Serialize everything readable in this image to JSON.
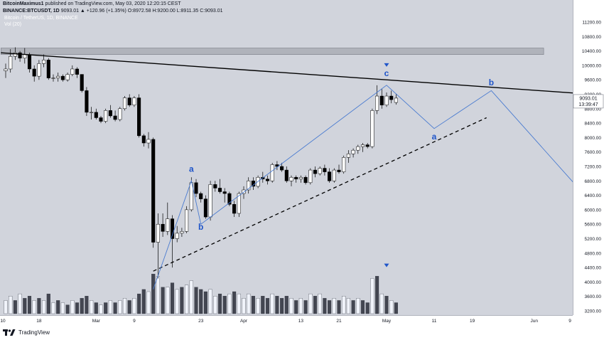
{
  "header": {
    "author": "BitcoinMaximus1",
    "published": "published on TradingView.com, May 03, 2020 12:20:15 CEST",
    "symbol": "BINANCE:BTCUSDT, 1D",
    "ohlc": "9093.01 ▲ +120.96 (+1.35%) O:8972.58 H:9200.00 L:8911.35 C:9093.01",
    "series_title": "Bitcoin / TetherUS, 1D, BINANCE",
    "volume_label": "Vol (20)"
  },
  "footer": {
    "brand": "TradingView"
  },
  "price_labels": {
    "last": "9093.01",
    "countdown": "13:39:47"
  },
  "colors": {
    "bg": "#d1d4dc",
    "up": "#ffffff",
    "down": "#000000",
    "wave": "#4a7bd0",
    "label": "#1f55c9"
  },
  "chart_data": {
    "type": "candlestick",
    "title": "Bitcoin / TetherUS, 1D, BINANCE",
    "ylim": [
      3200,
      11200
    ],
    "y_ticks": [
      11200,
      10800,
      10400,
      10000,
      9600,
      9200,
      8800,
      8400,
      8000,
      7600,
      7200,
      6800,
      6400,
      6000,
      5600,
      5200,
      4800,
      4400,
      4000,
      3600,
      3200
    ],
    "x_ticks": [
      {
        "label": "10",
        "x": -1
      },
      {
        "label": "18",
        "x": 7
      },
      {
        "label": "Mar",
        "x": 19
      },
      {
        "label": "9",
        "x": 27
      },
      {
        "label": "23",
        "x": 41
      },
      {
        "label": "Apr",
        "x": 50
      },
      {
        "label": "13",
        "x": 62
      },
      {
        "label": "21",
        "x": 70
      },
      {
        "label": "May",
        "x": 80
      },
      {
        "label": "11",
        "x": 90
      },
      {
        "label": "19",
        "x": 98
      },
      {
        "label": "Jun",
        "x": 111
      },
      {
        "label": "9",
        "x": 119
      }
    ],
    "candles": [
      [
        0,
        9850,
        10050,
        9650,
        9900
      ],
      [
        1,
        9900,
        10450,
        9800,
        10250
      ],
      [
        2,
        10250,
        10500,
        10150,
        10350
      ],
      [
        3,
        10350,
        10400,
        10100,
        10200
      ],
      [
        4,
        10200,
        10480,
        10050,
        10300
      ],
      [
        5,
        10300,
        10350,
        9800,
        9900
      ],
      [
        6,
        9900,
        10000,
        9550,
        9700
      ],
      [
        7,
        9700,
        10150,
        9600,
        10050
      ],
      [
        8,
        10050,
        10300,
        9950,
        10150
      ],
      [
        9,
        10150,
        10200,
        9600,
        9650
      ],
      [
        10,
        9650,
        9750,
        9550,
        9650
      ],
      [
        11,
        9650,
        9800,
        9550,
        9700
      ],
      [
        12,
        9700,
        9750,
        9550,
        9600
      ],
      [
        13,
        9600,
        9800,
        9550,
        9750
      ],
      [
        14,
        9750,
        10000,
        9700,
        9900
      ],
      [
        15,
        9900,
        9950,
        9650,
        9750
      ],
      [
        16,
        9750,
        9750,
        9250,
        9300
      ],
      [
        17,
        9300,
        9400,
        8600,
        8700
      ],
      [
        18,
        8700,
        8850,
        8500,
        8700
      ],
      [
        19,
        8700,
        8800,
        8500,
        8550
      ],
      [
        20,
        8550,
        8600,
        8400,
        8450
      ],
      [
        21,
        8450,
        8800,
        8400,
        8750
      ],
      [
        22,
        8750,
        8900,
        8550,
        8600
      ],
      [
        23,
        8600,
        8750,
        8450,
        8500
      ],
      [
        24,
        8500,
        8850,
        8450,
        8800
      ],
      [
        25,
        8800,
        9150,
        8750,
        9100
      ],
      [
        26,
        9100,
        9200,
        8850,
        8900
      ],
      [
        27,
        8900,
        9150,
        8850,
        9100
      ],
      [
        28,
        9100,
        9200,
        8000,
        8050
      ],
      [
        29,
        8050,
        8100,
        7750,
        7850
      ],
      [
        30,
        7850,
        8150,
        7700,
        7950
      ],
      [
        31,
        7950,
        8000,
        4950,
        5100
      ],
      [
        32,
        5100,
        5900,
        4100,
        5600
      ],
      [
        33,
        5600,
        5900,
        5250,
        5400
      ],
      [
        34,
        5400,
        6200,
        5300,
        5750
      ],
      [
        35,
        5750,
        5850,
        4400,
        5200
      ],
      [
        36,
        5200,
        5550,
        5100,
        5350
      ],
      [
        37,
        5350,
        5500,
        5250,
        5400
      ],
      [
        38,
        5400,
        6100,
        5350,
        6000
      ],
      [
        39,
        6000,
        6900,
        5950,
        6750
      ],
      [
        40,
        6750,
        6850,
        6350,
        6450
      ],
      [
        41,
        6450,
        6500,
        6200,
        6300
      ],
      [
        42,
        6300,
        6400,
        5750,
        5800
      ],
      [
        43,
        5800,
        6800,
        5700,
        6700
      ],
      [
        44,
        6700,
        6800,
        6500,
        6600
      ],
      [
        45,
        6600,
        6850,
        6450,
        6500
      ],
      [
        46,
        6500,
        6600,
        6200,
        6450
      ],
      [
        47,
        6450,
        6500,
        6100,
        6150
      ],
      [
        48,
        6150,
        6250,
        5800,
        5900
      ],
      [
        49,
        5900,
        6500,
        5800,
        6450
      ],
      [
        50,
        6450,
        6650,
        6300,
        6550
      ],
      [
        51,
        6550,
        6900,
        6450,
        6800
      ],
      [
        52,
        6800,
        6900,
        6550,
        6650
      ],
      [
        53,
        6650,
        6950,
        6600,
        6900
      ],
      [
        54,
        6900,
        7050,
        6750,
        6850
      ],
      [
        55,
        6850,
        6950,
        6700,
        6800
      ],
      [
        56,
        6800,
        7300,
        6750,
        7250
      ],
      [
        57,
        7250,
        7350,
        7100,
        7200
      ],
      [
        58,
        7200,
        7300,
        7050,
        7100
      ],
      [
        59,
        7100,
        7200,
        6750,
        6800
      ],
      [
        60,
        6800,
        6950,
        6650,
        6900
      ],
      [
        61,
        6900,
        6950,
        6750,
        6850
      ],
      [
        62,
        6850,
        6950,
        6750,
        6900
      ],
      [
        63,
        6900,
        6950,
        6700,
        6750
      ],
      [
        64,
        6750,
        7150,
        6700,
        7100
      ],
      [
        65,
        7100,
        7200,
        6900,
        7000
      ],
      [
        66,
        7000,
        7200,
        6950,
        7150
      ],
      [
        67,
        7150,
        7250,
        6950,
        7050
      ],
      [
        68,
        7050,
        7150,
        6750,
        6800
      ],
      [
        69,
        6800,
        7150,
        6750,
        7100
      ],
      [
        70,
        7100,
        7250,
        7000,
        7050
      ],
      [
        71,
        7050,
        7500,
        7000,
        7450
      ],
      [
        72,
        7450,
        7650,
        7300,
        7550
      ],
      [
        73,
        7550,
        7700,
        7450,
        7650
      ],
      [
        74,
        7650,
        7800,
        7550,
        7750
      ],
      [
        75,
        7750,
        7850,
        7600,
        7800
      ],
      [
        76,
        7800,
        7850,
        7700,
        7750
      ],
      [
        77,
        7750,
        8800,
        7700,
        8750
      ],
      [
        78,
        8750,
        9450,
        8650,
        9150
      ],
      [
        79,
        9150,
        9350,
        8800,
        8900
      ],
      [
        80,
        8900,
        9250,
        8850,
        9150
      ],
      [
        81,
        9150,
        9300,
        8950,
        9050
      ],
      [
        82,
        8972.58,
        9200,
        8911.35,
        9093.01
      ]
    ],
    "volume": [
      [
        0,
        0.3,
        1
      ],
      [
        1,
        0.4,
        1
      ],
      [
        2,
        0.3,
        0
      ],
      [
        3,
        0.45,
        1
      ],
      [
        4,
        0.35,
        0
      ],
      [
        5,
        0.4,
        0
      ],
      [
        6,
        0.3,
        1
      ],
      [
        7,
        0.35,
        0
      ],
      [
        8,
        0.3,
        1
      ],
      [
        9,
        0.45,
        0
      ],
      [
        10,
        0.25,
        1
      ],
      [
        11,
        0.3,
        0
      ],
      [
        12,
        0.25,
        1
      ],
      [
        13,
        0.2,
        0
      ],
      [
        14,
        0.3,
        1
      ],
      [
        15,
        0.25,
        0
      ],
      [
        16,
        0.35,
        0
      ],
      [
        17,
        0.4,
        0
      ],
      [
        18,
        0.3,
        1
      ],
      [
        19,
        0.25,
        0
      ],
      [
        20,
        0.2,
        1
      ],
      [
        21,
        0.25,
        0
      ],
      [
        22,
        0.3,
        1
      ],
      [
        23,
        0.25,
        0
      ],
      [
        24,
        0.3,
        1
      ],
      [
        25,
        0.35,
        1
      ],
      [
        26,
        0.3,
        0
      ],
      [
        27,
        0.35,
        1
      ],
      [
        28,
        0.45,
        0
      ],
      [
        29,
        0.55,
        0
      ],
      [
        30,
        0.5,
        1
      ],
      [
        31,
        0.9,
        0
      ],
      [
        32,
        0.85,
        1
      ],
      [
        33,
        0.6,
        0
      ],
      [
        34,
        0.6,
        1
      ],
      [
        35,
        0.7,
        0
      ],
      [
        36,
        0.55,
        1
      ],
      [
        37,
        0.6,
        0
      ],
      [
        38,
        0.65,
        1
      ],
      [
        39,
        0.75,
        1
      ],
      [
        40,
        0.6,
        0
      ],
      [
        41,
        0.55,
        0
      ],
      [
        42,
        0.5,
        0
      ],
      [
        43,
        0.55,
        1
      ],
      [
        44,
        0.4,
        1
      ],
      [
        45,
        0.45,
        0
      ],
      [
        46,
        0.4,
        0
      ],
      [
        47,
        0.45,
        1
      ],
      [
        48,
        0.5,
        0
      ],
      [
        49,
        0.45,
        1
      ],
      [
        50,
        0.35,
        1
      ],
      [
        51,
        0.45,
        1
      ],
      [
        52,
        0.4,
        0
      ],
      [
        53,
        0.35,
        1
      ],
      [
        54,
        0.4,
        0
      ],
      [
        55,
        0.35,
        0
      ],
      [
        56,
        0.45,
        1
      ],
      [
        57,
        0.4,
        0
      ],
      [
        58,
        0.35,
        0
      ],
      [
        59,
        0.4,
        0
      ],
      [
        60,
        0.35,
        1
      ],
      [
        61,
        0.3,
        0
      ],
      [
        62,
        0.35,
        1
      ],
      [
        63,
        0.3,
        0
      ],
      [
        64,
        0.45,
        1
      ],
      [
        65,
        0.4,
        0
      ],
      [
        66,
        0.45,
        1
      ],
      [
        67,
        0.35,
        0
      ],
      [
        68,
        0.3,
        0
      ],
      [
        69,
        0.35,
        1
      ],
      [
        70,
        0.3,
        0
      ],
      [
        71,
        0.4,
        1
      ],
      [
        72,
        0.35,
        1
      ],
      [
        73,
        0.3,
        0
      ],
      [
        74,
        0.35,
        1
      ],
      [
        75,
        0.3,
        0
      ],
      [
        76,
        0.25,
        0
      ],
      [
        77,
        0.8,
        1
      ],
      [
        78,
        0.85,
        0
      ],
      [
        79,
        0.45,
        1
      ],
      [
        80,
        0.4,
        0
      ],
      [
        81,
        0.3,
        1
      ],
      [
        82,
        0.25,
        0
      ]
    ],
    "resistance_zone": {
      "y_low": 10300,
      "y_high": 10480,
      "x_from": -1,
      "x_to": 113
    },
    "lines": [
      {
        "name": "resistance",
        "style": "solid",
        "x1": -1,
        "y1": 10350,
        "x2": 123,
        "y2": 9200
      },
      {
        "name": "support",
        "style": "dashed",
        "x1": 31,
        "y1": 4300,
        "x2": 101,
        "y2": 8550
      }
    ],
    "wave_path": [
      [
        31,
        3800
      ],
      [
        39,
        6800
      ],
      [
        41,
        5600
      ],
      [
        80,
        9450
      ],
      [
        90,
        8250
      ],
      [
        102,
        9300
      ],
      [
        123,
        6200
      ]
    ],
    "wave_labels": [
      {
        "text": "a",
        "x": 39,
        "y": 7050
      },
      {
        "text": "b",
        "x": 41,
        "y": 5450
      },
      {
        "text": "c",
        "x": 80,
        "y": 9700
      },
      {
        "text": "a",
        "x": 90,
        "y": 7950
      },
      {
        "text": "b",
        "x": 102,
        "y": 9450
      }
    ],
    "markers": [
      {
        "shape": "down-triangle",
        "x": 80,
        "y": 10000
      },
      {
        "shape": "down-triangle",
        "x": 80,
        "y": 4450
      }
    ]
  }
}
